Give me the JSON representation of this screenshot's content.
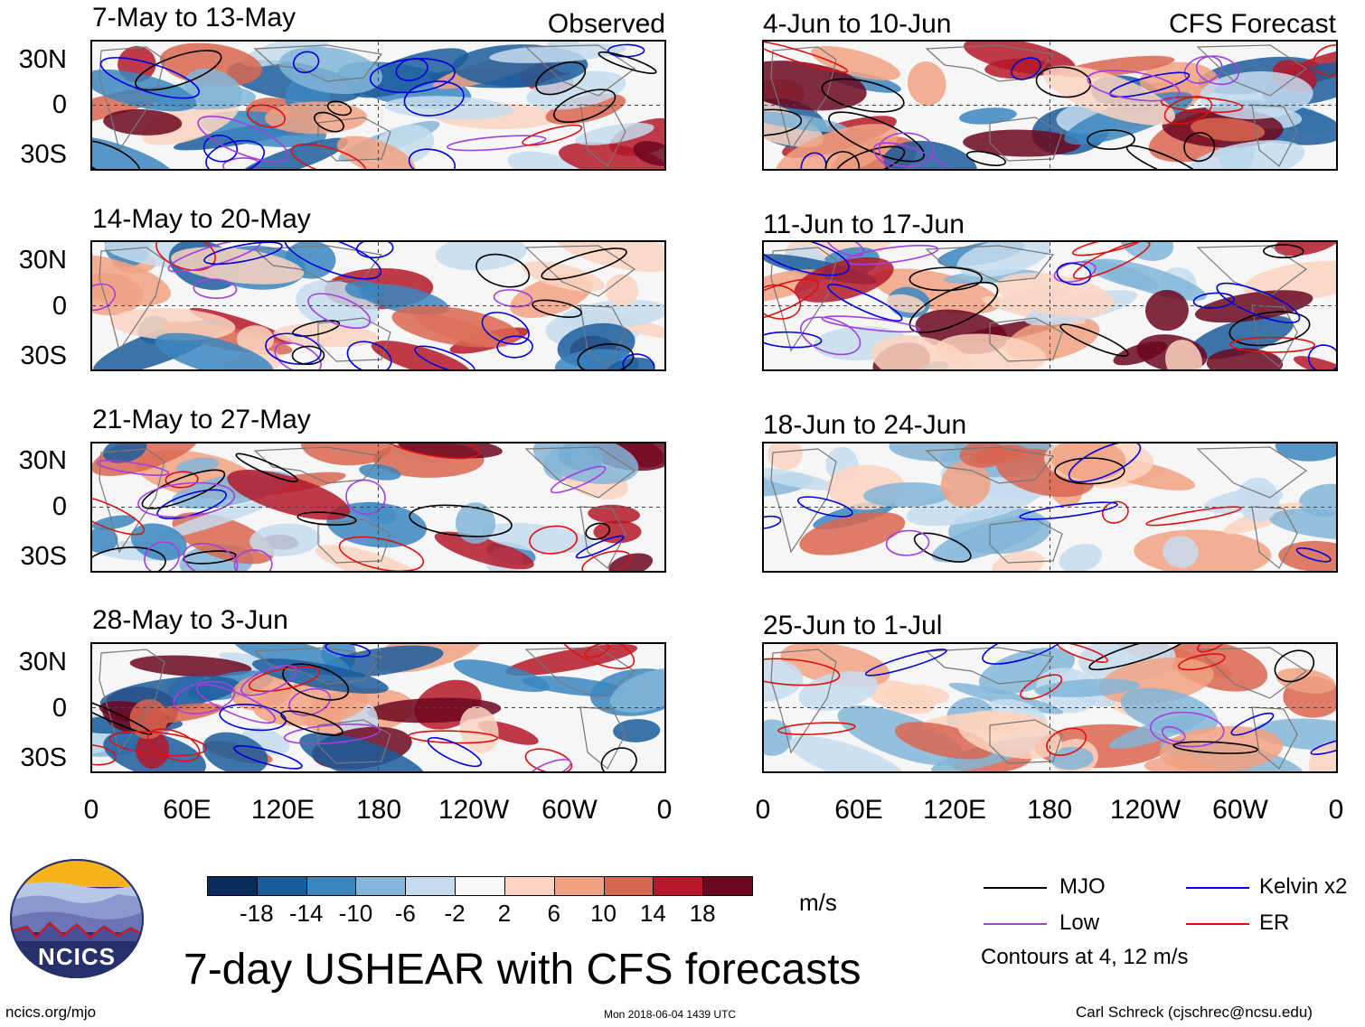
{
  "panels_left": [
    {
      "title": "7-May to 13-May",
      "tag": "Observed"
    },
    {
      "title": "14-May to 20-May",
      "tag": ""
    },
    {
      "title": "21-May to 27-May",
      "tag": ""
    },
    {
      "title": "28-May to 3-Jun",
      "tag": ""
    }
  ],
  "panels_right": [
    {
      "title": "4-Jun to 10-Jun",
      "tag": "CFS Forecast"
    },
    {
      "title": "11-Jun to 17-Jun",
      "tag": ""
    },
    {
      "title": "18-Jun to 24-Jun",
      "tag": ""
    },
    {
      "title": "25-Jun to 1-Jul",
      "tag": ""
    }
  ],
  "lat_labels": [
    "30N",
    "0",
    "30S"
  ],
  "lon_labels": [
    "0",
    "60E",
    "120E",
    "180",
    "120W",
    "60W",
    "0"
  ],
  "colorbar": {
    "colors": [
      "#0a2c5c",
      "#1b5d9c",
      "#3b86bf",
      "#82b5d8",
      "#c6dcee",
      "#f9f9f9",
      "#fbd3c0",
      "#f1a282",
      "#d96650",
      "#b4192a",
      "#6c0720"
    ],
    "labels": [
      "-18",
      "-14",
      "-10",
      "-6",
      "-2",
      "2",
      "6",
      "10",
      "14",
      "18"
    ],
    "units": "m/s"
  },
  "main_title": "7-day USHEAR with CFS forecasts",
  "legend": {
    "items": [
      {
        "label": "MJO",
        "color": "#000000"
      },
      {
        "label": "Kelvin x2",
        "color": "#0000dd"
      },
      {
        "label": "Low",
        "color": "#a23fe0"
      },
      {
        "label": "ER",
        "color": "#e01010"
      }
    ],
    "note": "Contours at 4, 12 m/s"
  },
  "logo_text": "NCICS",
  "footer": {
    "url": "ncics.org/mjo",
    "timestamp": "Mon 2018-06-04 1439 UTC",
    "credit": "Carl Schreck (cjschrec@ncsu.edu)"
  }
}
